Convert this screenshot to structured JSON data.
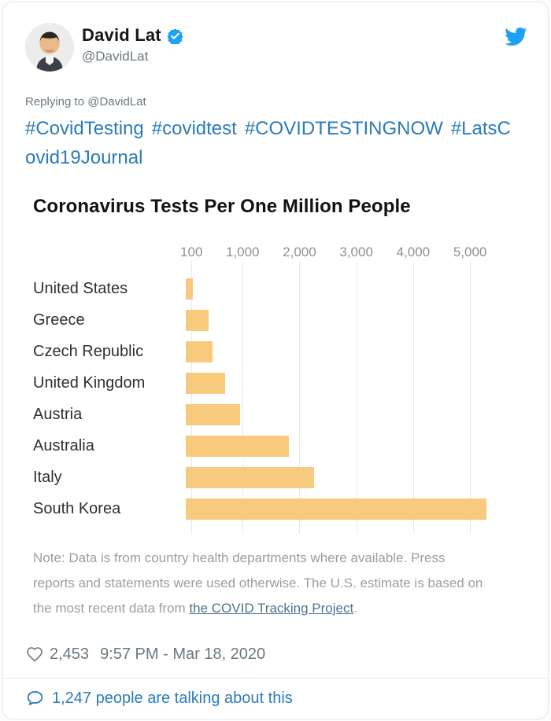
{
  "header": {
    "name": "David Lat",
    "handle": "@DavidLat",
    "verified_badge": "verified",
    "brand_color": "#1da1f2"
  },
  "reply_context": "Replying to @DavidLat",
  "tweet": {
    "hashtags": [
      "#CovidTesting",
      "#covidtest",
      "#COVIDTESTINGNOW",
      "#LatsCovid19Journal"
    ],
    "link_color": "#2b7bb9"
  },
  "chart_data": {
    "type": "bar",
    "orientation": "horizontal",
    "title": "Coronavirus Tests Per One Million People",
    "categories": [
      "United States",
      "Greece",
      "Czech Republic",
      "United Kingdom",
      "Austria",
      "Australia",
      "Italy",
      "South Korea"
    ],
    "values": [
      125,
      400,
      470,
      690,
      960,
      1820,
      2250,
      5290
    ],
    "xlabel": "",
    "ylabel": "",
    "x_ticks": [
      100,
      1000,
      2000,
      3000,
      4000,
      5000
    ],
    "x_tick_labels": [
      "100",
      "1,000",
      "2,000",
      "3,000",
      "4,000",
      "5,000"
    ],
    "xlim": [
      0,
      5580
    ],
    "grid": true,
    "legend": false,
    "bar_color": "#f7ca7e",
    "note_before": "Note: Data is from country health departments where available. Press reports and statements were used otherwise. The U.S. estimate is based on the most recent data from ",
    "note_link": "the COVID Tracking Project",
    "note_after": "."
  },
  "engagement": {
    "likes": "2,453",
    "timestamp": "9:57 PM - Mar 18, 2020"
  },
  "footer": {
    "talking_text": "1,247 people are talking about this"
  }
}
